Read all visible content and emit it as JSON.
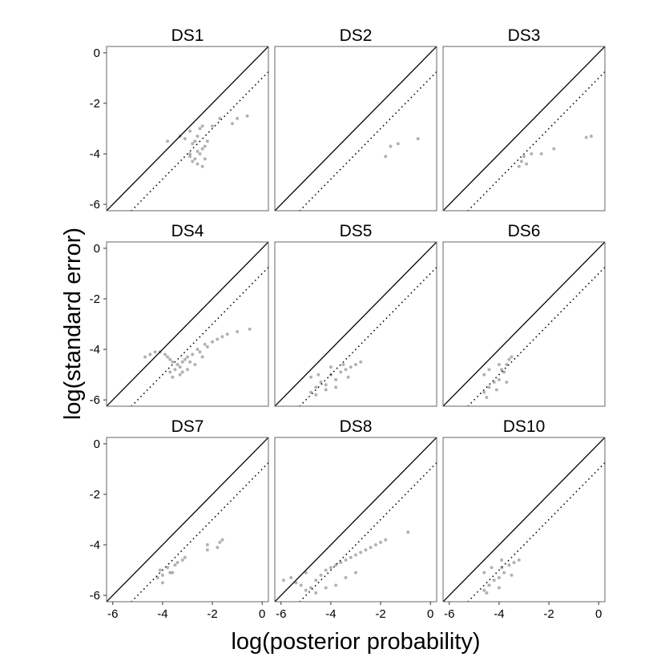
{
  "chart_data": {
    "type": "scatter",
    "xlabel": "log(posterior probability)",
    "ylabel": "log(standard error)",
    "xlim": [
      -6.25,
      0.25
    ],
    "ylim": [
      -6.25,
      0.25
    ],
    "xticks": [
      -6,
      -4,
      -2,
      0
    ],
    "yticks": [
      0,
      -2,
      -4,
      -6
    ],
    "xtick_labels": [
      "-6",
      "-4",
      "-2",
      "0"
    ],
    "ytick_labels": [
      "0",
      "-2",
      "-4",
      "-6"
    ],
    "reference_lines": [
      {
        "style": "solid",
        "slope": 1,
        "intercept": 0
      },
      {
        "style": "dotted",
        "slope": 1,
        "intercept": -1
      }
    ],
    "point_color": "#000000",
    "point_opacity": 0.3,
    "panels": [
      {
        "title": "DS1",
        "points": [
          [
            -3.8,
            -3.5
          ],
          [
            -3.3,
            -3.3
          ],
          [
            -3.1,
            -3.4
          ],
          [
            -2.9,
            -3.1
          ],
          [
            -2.8,
            -3.6
          ],
          [
            -2.7,
            -3.5
          ],
          [
            -2.6,
            -3.3
          ],
          [
            -2.5,
            -3.0
          ],
          [
            -2.4,
            -2.9
          ],
          [
            -2.0,
            -2.9
          ],
          [
            -1.7,
            -2.6
          ],
          [
            -1.2,
            -2.8
          ],
          [
            -1.0,
            -2.6
          ],
          [
            -0.6,
            -2.5
          ],
          [
            -2.9,
            -4.1
          ],
          [
            -2.8,
            -4.3
          ],
          [
            -2.7,
            -4.2
          ],
          [
            -2.6,
            -4.4
          ],
          [
            -2.5,
            -4.0
          ],
          [
            -2.4,
            -3.8
          ],
          [
            -2.3,
            -3.7
          ],
          [
            -2.2,
            -3.5
          ],
          [
            -2.6,
            -3.9
          ],
          [
            -2.9,
            -4.0
          ],
          [
            -2.3,
            -4.2
          ],
          [
            -2.4,
            -4.5
          ]
        ]
      },
      {
        "title": "DS2",
        "points": [
          [
            -1.8,
            -4.1
          ],
          [
            -1.6,
            -3.7
          ],
          [
            -1.3,
            -3.6
          ],
          [
            -0.5,
            -3.4
          ]
        ]
      },
      {
        "title": "DS3",
        "points": [
          [
            -3.2,
            -4.5
          ],
          [
            -3.1,
            -4.3
          ],
          [
            -3.0,
            -4.1
          ],
          [
            -2.9,
            -4.4
          ],
          [
            -2.7,
            -4.0
          ],
          [
            -2.3,
            -4.0
          ],
          [
            -1.8,
            -3.8
          ],
          [
            -0.3,
            -3.3
          ],
          [
            -0.5,
            -3.35
          ]
        ]
      },
      {
        "title": "DS4",
        "points": [
          [
            -4.7,
            -4.3
          ],
          [
            -4.5,
            -4.2
          ],
          [
            -4.3,
            -4.1
          ],
          [
            -4.1,
            -4.1
          ],
          [
            -3.9,
            -4.2
          ],
          [
            -3.8,
            -4.3
          ],
          [
            -3.7,
            -4.4
          ],
          [
            -3.6,
            -4.5
          ],
          [
            -3.7,
            -4.9
          ],
          [
            -3.5,
            -4.8
          ],
          [
            -3.4,
            -4.6
          ],
          [
            -3.3,
            -4.7
          ],
          [
            -3.2,
            -4.5
          ],
          [
            -3.1,
            -4.4
          ],
          [
            -3.0,
            -4.3
          ],
          [
            -2.9,
            -4.5
          ],
          [
            -2.8,
            -4.2
          ],
          [
            -2.6,
            -4.0
          ],
          [
            -2.5,
            -4.1
          ],
          [
            -2.3,
            -3.8
          ],
          [
            -2.2,
            -3.9
          ],
          [
            -2.0,
            -3.7
          ],
          [
            -1.8,
            -3.6
          ],
          [
            -1.6,
            -3.5
          ],
          [
            -1.4,
            -3.4
          ],
          [
            -1.0,
            -3.3
          ],
          [
            -0.5,
            -3.2
          ],
          [
            -3.6,
            -5.1
          ],
          [
            -3.3,
            -5.0
          ],
          [
            -3.0,
            -4.8
          ],
          [
            -2.7,
            -4.6
          ],
          [
            -3.2,
            -4.9
          ],
          [
            -2.4,
            -4.3
          ]
        ]
      },
      {
        "title": "DS5",
        "points": [
          [
            -4.8,
            -5.7
          ],
          [
            -4.8,
            -5.1
          ],
          [
            -4.6,
            -5.5
          ],
          [
            -4.4,
            -5.3
          ],
          [
            -4.2,
            -5.4
          ],
          [
            -4.0,
            -5.0
          ],
          [
            -3.8,
            -5.2
          ],
          [
            -3.6,
            -4.9
          ],
          [
            -3.4,
            -4.8
          ],
          [
            -3.2,
            -4.7
          ],
          [
            -3.0,
            -4.6
          ],
          [
            -2.8,
            -4.5
          ],
          [
            -4.5,
            -5.0
          ],
          [
            -4.0,
            -4.7
          ],
          [
            -3.5,
            -4.6
          ],
          [
            -4.6,
            -5.8
          ],
          [
            -4.2,
            -5.6
          ],
          [
            -3.8,
            -5.5
          ],
          [
            -3.3,
            -5.1
          ]
        ]
      },
      {
        "title": "DS6",
        "points": [
          [
            -4.6,
            -5.7
          ],
          [
            -4.6,
            -5.0
          ],
          [
            -4.4,
            -5.5
          ],
          [
            -4.2,
            -5.3
          ],
          [
            -4.0,
            -5.2
          ],
          [
            -3.9,
            -4.8
          ],
          [
            -3.8,
            -4.9
          ],
          [
            -3.7,
            -4.6
          ],
          [
            -3.6,
            -4.4
          ],
          [
            -3.5,
            -4.3
          ],
          [
            -4.4,
            -4.8
          ],
          [
            -4.0,
            -4.6
          ],
          [
            -4.5,
            -5.9
          ],
          [
            -4.1,
            -5.6
          ],
          [
            -3.7,
            -5.3
          ]
        ]
      },
      {
        "title": "DS7",
        "points": [
          [
            -4.2,
            -5.3
          ],
          [
            -4.1,
            -5.0
          ],
          [
            -4.0,
            -5.2
          ],
          [
            -3.8,
            -4.9
          ],
          [
            -3.7,
            -5.1
          ],
          [
            -3.5,
            -4.8
          ],
          [
            -3.4,
            -4.7
          ],
          [
            -3.2,
            -4.6
          ],
          [
            -3.1,
            -4.5
          ],
          [
            -2.2,
            -4.2
          ],
          [
            -2.2,
            -4.0
          ],
          [
            -1.8,
            -4.1
          ],
          [
            -1.7,
            -3.9
          ],
          [
            -1.6,
            -3.8
          ],
          [
            -4.0,
            -5.5
          ],
          [
            -3.6,
            -5.1
          ]
        ]
      },
      {
        "title": "DS8",
        "points": [
          [
            -5.9,
            -5.4
          ],
          [
            -5.6,
            -5.3
          ],
          [
            -5.4,
            -5.5
          ],
          [
            -5.2,
            -5.6
          ],
          [
            -5.0,
            -5.8
          ],
          [
            -4.8,
            -5.7
          ],
          [
            -4.6,
            -5.4
          ],
          [
            -4.4,
            -5.2
          ],
          [
            -4.2,
            -5.0
          ],
          [
            -4.0,
            -4.9
          ],
          [
            -3.8,
            -4.8
          ],
          [
            -3.6,
            -4.7
          ],
          [
            -3.4,
            -4.6
          ],
          [
            -3.2,
            -4.5
          ],
          [
            -3.0,
            -4.4
          ],
          [
            -2.8,
            -4.3
          ],
          [
            -2.6,
            -4.2
          ],
          [
            -2.4,
            -4.1
          ],
          [
            -2.2,
            -4.0
          ],
          [
            -2.0,
            -3.9
          ],
          [
            -1.8,
            -3.8
          ],
          [
            -0.9,
            -3.5
          ],
          [
            -5.0,
            -5.1
          ],
          [
            -4.6,
            -5.9
          ],
          [
            -4.2,
            -5.7
          ],
          [
            -3.8,
            -5.6
          ],
          [
            -3.4,
            -5.3
          ],
          [
            -3.0,
            -5.1
          ]
        ]
      },
      {
        "title": "DS10",
        "points": [
          [
            -4.6,
            -5.8
          ],
          [
            -4.6,
            -5.1
          ],
          [
            -4.4,
            -5.6
          ],
          [
            -4.2,
            -5.4
          ],
          [
            -4.0,
            -5.3
          ],
          [
            -3.9,
            -4.9
          ],
          [
            -3.8,
            -5.1
          ],
          [
            -3.6,
            -4.8
          ],
          [
            -3.4,
            -4.7
          ],
          [
            -3.2,
            -4.6
          ],
          [
            -4.3,
            -4.9
          ],
          [
            -3.9,
            -4.6
          ],
          [
            -4.5,
            -5.9
          ],
          [
            -4.0,
            -5.7
          ],
          [
            -3.5,
            -5.2
          ]
        ]
      }
    ]
  }
}
